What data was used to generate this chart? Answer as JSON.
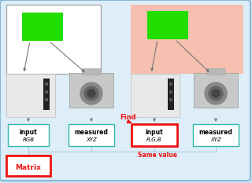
{
  "bg_color": "#cce4f0",
  "outer_fill": "#ddeef8",
  "outer_border": "#8ab8d8",
  "left_patch_bg": "#ffffff",
  "left_patch_border": "#aaaaaa",
  "right_patch_bg": "#f5c0b0",
  "green_color": "#22dd00",
  "teal_border": "#30b8a8",
  "red_border": "#ee1111",
  "red_text": "#ee1111",
  "arrow_color": "#777777",
  "line_color": "#aaccdd",
  "box_fill": "#ffffff",
  "scanner_color": "#d8d8d8",
  "camera_color": "#c0c0c0",
  "camera_dark": "#888888",
  "camera_darker": "#555555",
  "label_input1": "input",
  "label_rgb": "RGB",
  "label_measured1": "measured",
  "label_xyz1": "XYZ",
  "label_input2": "input",
  "label_rgb2": "R,G,B",
  "label_measured2": "measured",
  "label_xyz2": "XYZ",
  "label_matrix": "Matrix",
  "label_find": "Find",
  "label_same": "Same value"
}
